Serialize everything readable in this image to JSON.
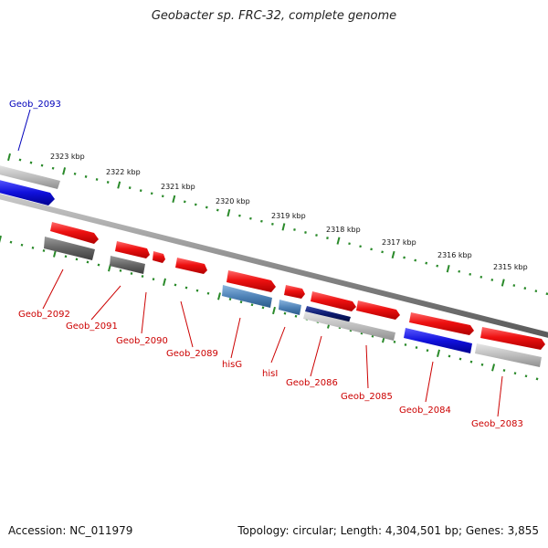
{
  "title": "Geobacter sp. FRC-32, complete genome",
  "footer": {
    "accession": "Accession: NC_011979",
    "summary": "Topology: circular; Length: 4,304,501 bp; Genes: 3,855"
  },
  "colors": {
    "forward_gene": "#ee1111",
    "reverse_gene": "#1111dd",
    "gray_gene": "#bdbdbd",
    "dark_gray_gene": "#666666",
    "steel_gene": "#4f83b8",
    "navy_gene": "#0b1a6e",
    "tick": "#2a8a2a",
    "backbone": "#8c8c8c",
    "label_red": "#cc0000",
    "label_blue": "#0000bb"
  },
  "scale_labels": [
    "2323 kbp",
    "2322 kbp",
    "2321 kbp",
    "2320 kbp",
    "2319 kbp",
    "2318 kbp",
    "2317 kbp",
    "2316 kbp",
    "2315 kbp"
  ],
  "genes": [
    {
      "name": "Geob_2093",
      "color": "blue"
    },
    {
      "name": "Geob_2092",
      "color": "red"
    },
    {
      "name": "Geob_2091",
      "color": "red"
    },
    {
      "name": "Geob_2090",
      "color": "red"
    },
    {
      "name": "Geob_2089",
      "color": "red"
    },
    {
      "name": "hisG",
      "color": "red"
    },
    {
      "name": "hisI",
      "color": "red"
    },
    {
      "name": "Geob_2086",
      "color": "red"
    },
    {
      "name": "Geob_2085",
      "color": "red"
    },
    {
      "name": "Geob_2084",
      "color": "red"
    },
    {
      "name": "Geob_2083",
      "color": "red"
    }
  ]
}
